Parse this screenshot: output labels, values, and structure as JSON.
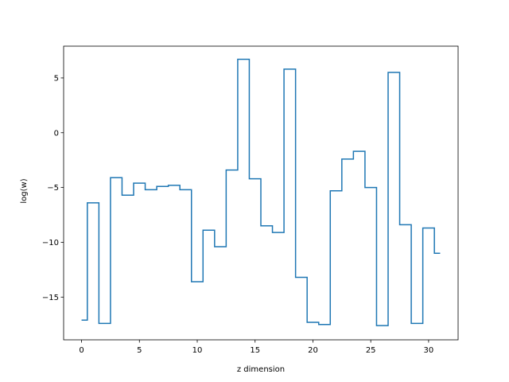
{
  "chart_data": {
    "type": "line",
    "title": "",
    "xlabel": "z dimension",
    "ylabel": "log(w)",
    "xlim": [
      -1.55,
      32.55
    ],
    "ylim": [
      -18.9,
      7.9
    ],
    "xticks": [
      0,
      5,
      10,
      15,
      20,
      25,
      30
    ],
    "yticks": [
      -15,
      -10,
      -5,
      0,
      5
    ],
    "grid": false,
    "legend": "none",
    "step": "mid",
    "series": [
      {
        "color": "#1f77b4",
        "x": [
          0,
          1,
          2,
          3,
          4,
          5,
          6,
          7,
          8,
          9,
          10,
          11,
          12,
          13,
          14,
          15,
          16,
          17,
          18,
          19,
          20,
          21,
          22,
          23,
          24,
          25,
          26,
          27,
          28,
          29,
          30,
          31
        ],
        "values": [
          -17.1,
          -6.4,
          -17.4,
          -4.1,
          -5.7,
          -4.6,
          -5.2,
          -4.9,
          -4.8,
          -5.2,
          -13.6,
          -8.9,
          -10.4,
          -3.4,
          6.7,
          -4.2,
          -8.5,
          -9.1,
          5.8,
          -13.2,
          -17.3,
          -17.5,
          -5.3,
          -2.4,
          -1.7,
          -5.0,
          -17.6,
          5.5,
          -8.4,
          -17.4,
          -8.7,
          -11.0
        ]
      }
    ]
  }
}
